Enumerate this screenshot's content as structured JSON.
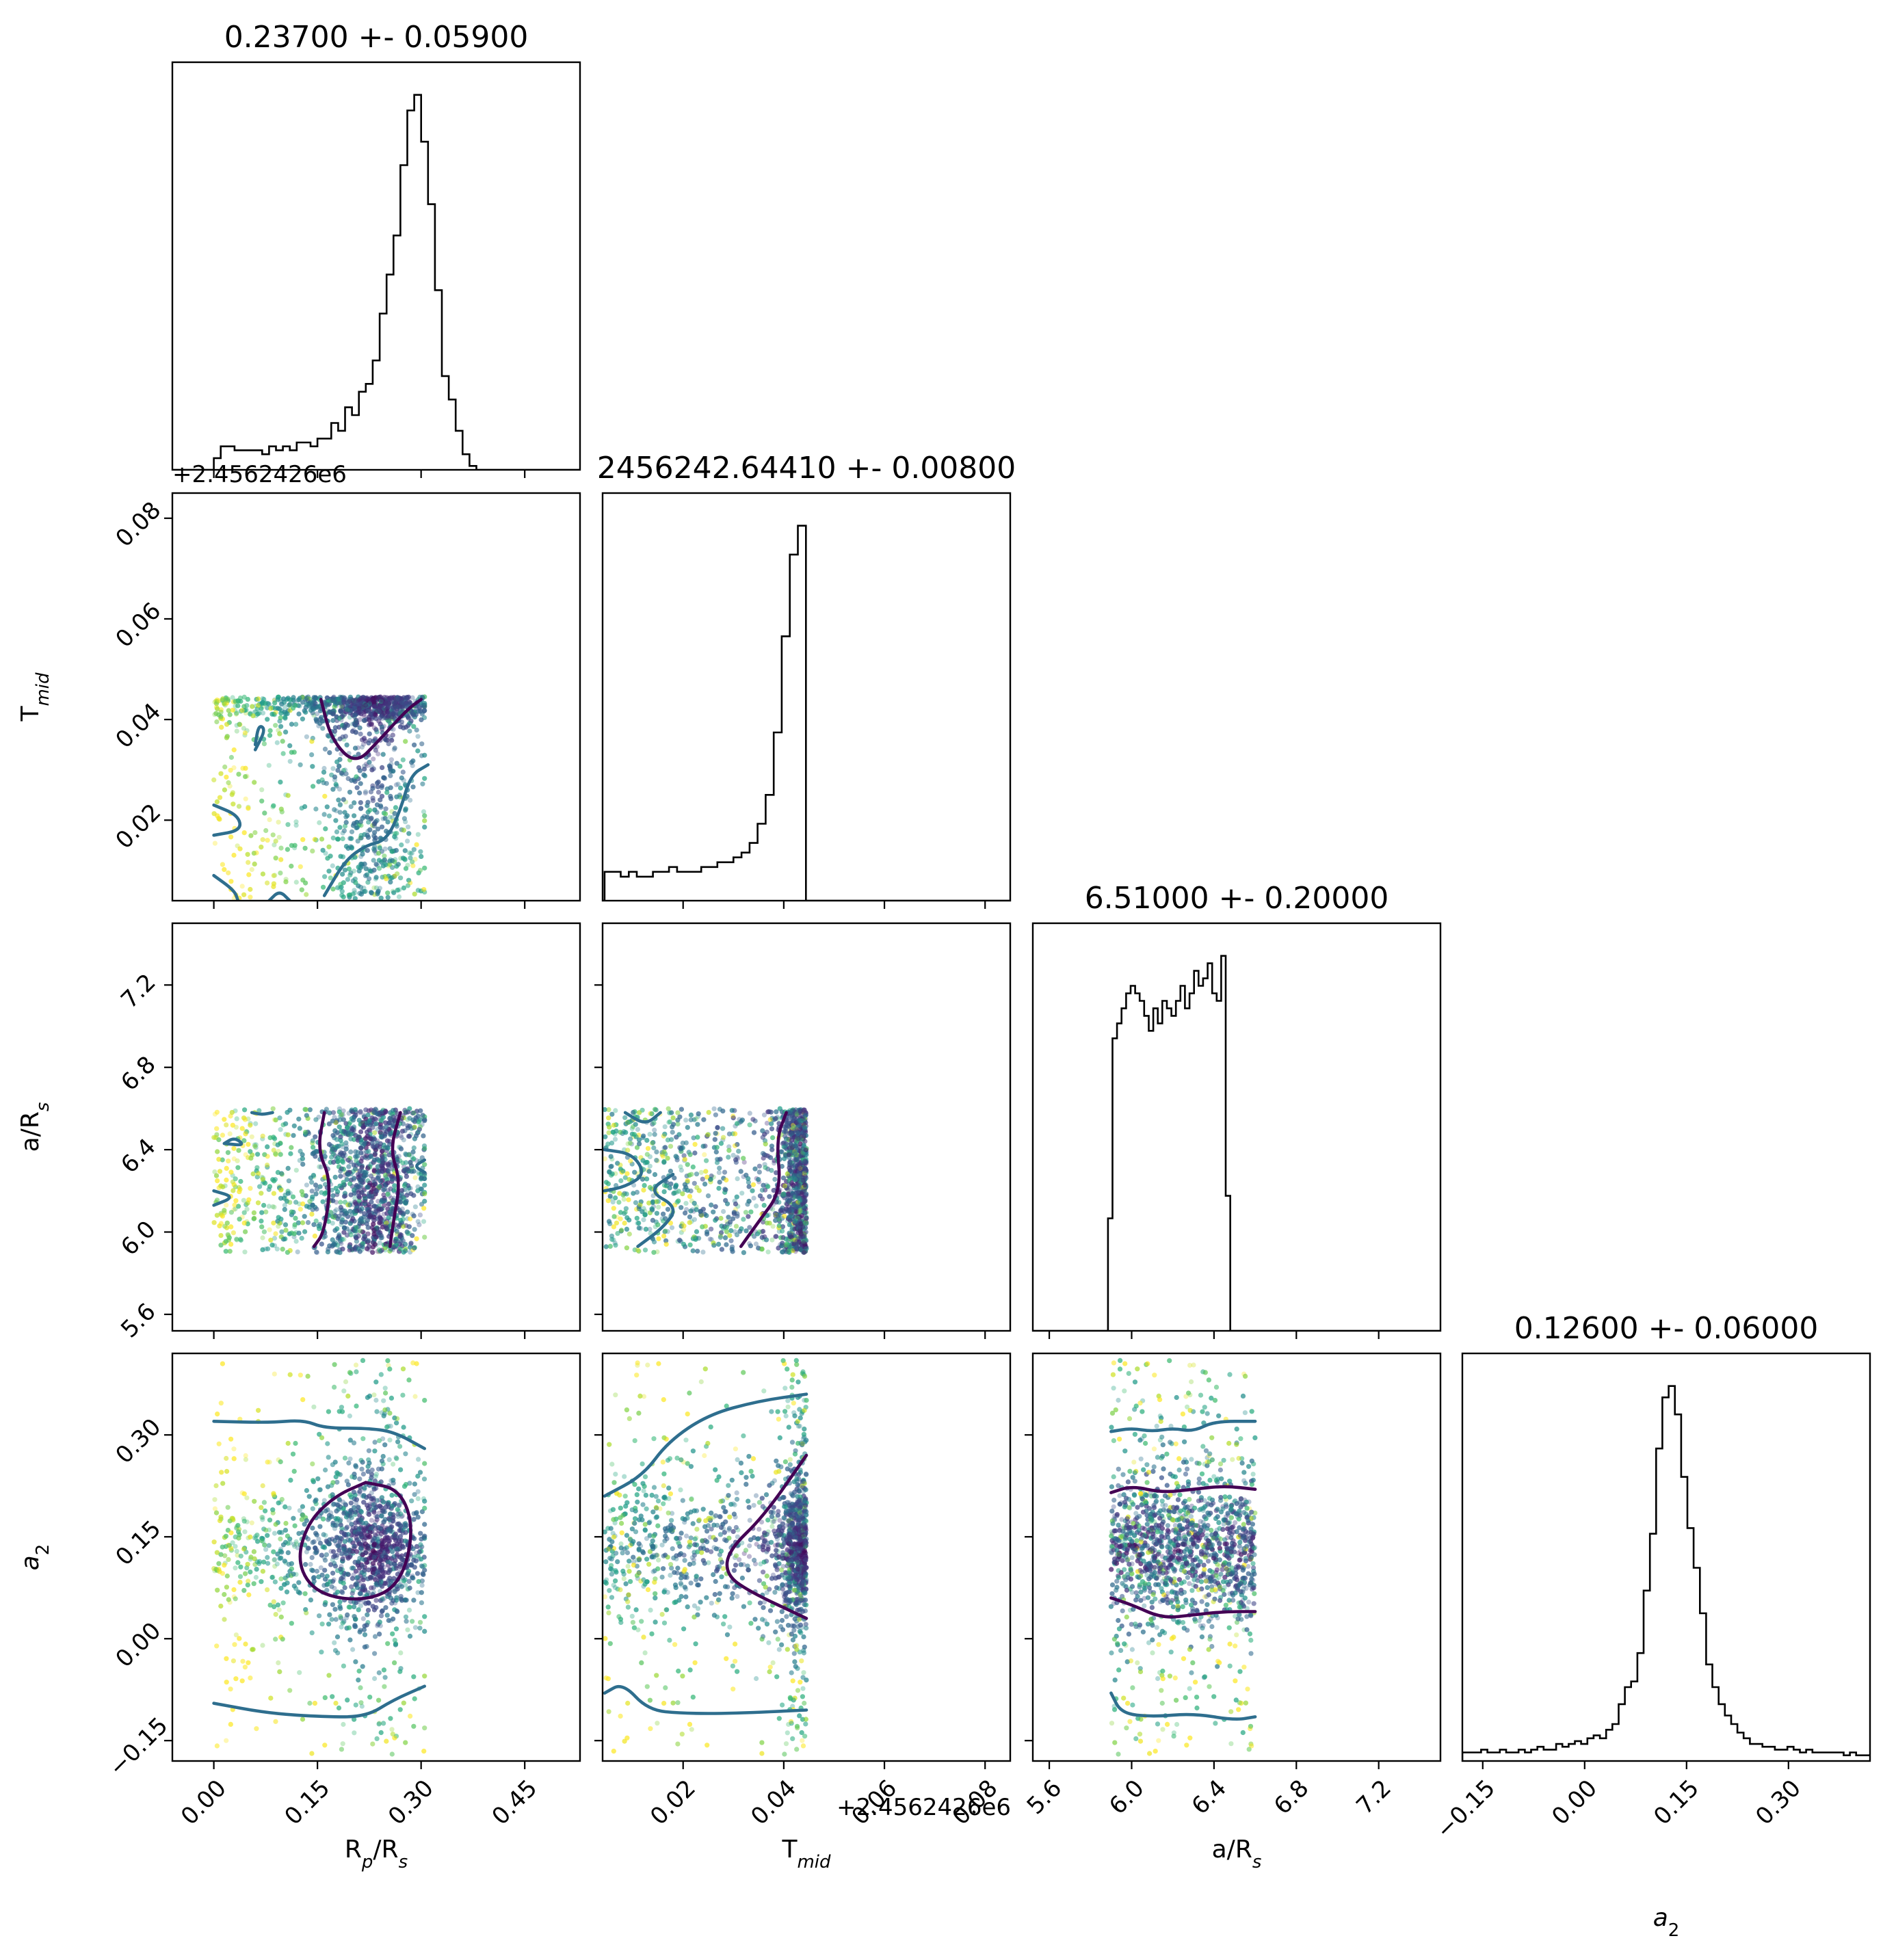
{
  "chart_data": {
    "type": "scatter",
    "parameters": [
      "R_p/R_s",
      "T_mid",
      "a/R_s",
      "a_2"
    ],
    "axis_labels": {
      "R_p/R_s": {
        "main": "R",
        "sub": "p",
        "rest": "/R",
        "sub2": "s"
      },
      "T_mid": {
        "main": "T",
        "sub": "mid",
        "rest": "",
        "sub2": ""
      },
      "a/R_s": {
        "main": "a/R",
        "sub": "s",
        "rest": "",
        "sub2": ""
      },
      "a_2": {
        "main": "a",
        "sub": "2",
        "rest": "",
        "sub2": ""
      }
    },
    "titles": [
      "0.23700 +- 0.05900",
      "2456242.64410 +- 0.00800",
      "6.51000 +- 0.20000",
      "0.12600 +- 0.06000"
    ],
    "offset_text": "+2.4562426e6",
    "ranges": [
      [
        -0.06,
        0.53
      ],
      [
        0.004,
        0.085
      ],
      [
        5.52,
        7.5
      ],
      [
        -0.18,
        0.42
      ]
    ],
    "ticks": [
      [
        "0.00",
        "0.15",
        "0.30",
        "0.45"
      ],
      [
        "0.02",
        "0.04",
        "0.06",
        "0.08"
      ],
      [
        "5.6",
        "6.0",
        "6.4",
        "6.8",
        "7.2"
      ],
      [
        "-0.15",
        "0.00",
        "0.15",
        "0.30"
      ]
    ],
    "tick_values": [
      [
        0.0,
        0.15,
        0.3,
        0.45
      ],
      [
        0.02,
        0.04,
        0.06,
        0.08
      ],
      [
        5.6,
        6.0,
        6.4,
        6.8,
        7.2
      ],
      [
        -0.15,
        0.0,
        0.15,
        0.3
      ]
    ],
    "histograms": [
      {
        "param": "R_p/R_s",
        "bin_start": 0.0,
        "bin_width": 0.01,
        "counts": [
          3,
          6,
          6,
          5,
          5,
          5,
          5,
          4,
          6,
          5,
          6,
          5,
          7,
          7,
          6,
          8,
          8,
          12,
          10,
          16,
          14,
          20,
          22,
          28,
          40,
          50,
          60,
          78,
          92,
          96,
          84,
          68,
          46,
          24,
          18,
          10,
          4,
          1,
          0,
          0
        ]
      },
      {
        "param": "T_mid",
        "bin_start": 0.0044,
        "bin_width": 0.0016,
        "counts": [
          6,
          6,
          5,
          6,
          5,
          5,
          6,
          6,
          7,
          6,
          6,
          6,
          7,
          7,
          8,
          8,
          9,
          10,
          12,
          16,
          22,
          35,
          55,
          72,
          78
        ]
      },
      {
        "param": "a/R_s",
        "bin_start": 5.885,
        "bin_width": 0.022,
        "counts": [
          30,
          78,
          82,
          86,
          90,
          92,
          90,
          88,
          84,
          80,
          86,
          82,
          88,
          86,
          84,
          88,
          92,
          86,
          90,
          96,
          92,
          94,
          98,
          90,
          88,
          100,
          36
        ]
      },
      {
        "param": "a_2",
        "bin_start": -0.18,
        "bin_width": 0.0092,
        "counts": [
          3,
          3,
          3,
          4,
          3,
          3,
          4,
          3,
          3,
          4,
          3,
          4,
          5,
          4,
          4,
          6,
          5,
          6,
          7,
          6,
          8,
          9,
          8,
          11,
          13,
          20,
          26,
          28,
          38,
          60,
          80,
          110,
          128,
          132,
          122,
          100,
          82,
          68,
          52,
          34,
          26,
          20,
          16,
          13,
          10,
          8,
          6,
          6,
          5,
          5,
          4,
          4,
          5,
          4,
          3,
          4,
          3,
          3,
          3,
          3,
          3,
          2,
          3,
          2,
          2,
          2
        ]
      }
    ],
    "contour_colors": [
      "#440154",
      "#2e6e8e"
    ],
    "point_colormap": "viridis",
    "samples": {
      "count": 3400,
      "note_ranges": {
        "R_p/R_s": [
          0.0,
          0.305
        ],
        "T_mid": [
          0.0044,
          0.0445
        ],
        "a/R_s": [
          5.9,
          6.6
        ],
        "a_2": [
          -0.17,
          0.41
        ]
      }
    }
  }
}
